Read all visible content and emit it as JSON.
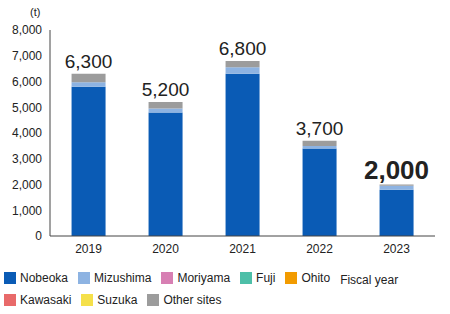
{
  "chart_data": {
    "type": "bar",
    "stacked": true,
    "y_label": "(t)",
    "x_label": "Fiscal year",
    "categories": [
      "2019",
      "2020",
      "2021",
      "2022",
      "2023"
    ],
    "series": [
      {
        "name": "Nobeoka",
        "color": "#0a5bb5",
        "values": [
          5800,
          4800,
          6300,
          3400,
          1800
        ]
      },
      {
        "name": "Mizushima",
        "color": "#8db3e2",
        "values": [
          170,
          150,
          250,
          100,
          150
        ]
      },
      {
        "name": "Moriyama",
        "color": "#d77fb3",
        "values": [
          0,
          0,
          0,
          0,
          0
        ]
      },
      {
        "name": "Fuji",
        "color": "#4dbfa8",
        "values": [
          0,
          0,
          0,
          0,
          0
        ]
      },
      {
        "name": "Ohito",
        "color": "#f29b00",
        "values": [
          0,
          0,
          0,
          0,
          0
        ]
      },
      {
        "name": "Kawasaki",
        "color": "#e86a6a",
        "values": [
          0,
          0,
          0,
          0,
          0
        ]
      },
      {
        "name": "Suzuka",
        "color": "#f5e04a",
        "values": [
          0,
          0,
          0,
          0,
          0
        ]
      },
      {
        "name": "Other sites",
        "color": "#9c9c9c",
        "values": [
          330,
          250,
          250,
          200,
          50
        ]
      }
    ],
    "totals": [
      {
        "value": 6300,
        "label": "6,300"
      },
      {
        "value": 5200,
        "label": "5,200"
      },
      {
        "value": 6800,
        "label": "6,800"
      },
      {
        "value": 3700,
        "label": "3,700"
      },
      {
        "value": 2000,
        "label": "2,000"
      }
    ],
    "ylim": [
      0,
      8000
    ],
    "yticks": [
      0,
      {
        "value": 1000,
        "label": "1,000"
      },
      {
        "value": 2000,
        "label": "2,000"
      },
      {
        "value": 3000,
        "label": "3,000"
      },
      {
        "value": 4000,
        "label": "4,000"
      },
      {
        "value": 5000,
        "label": "5,000"
      },
      {
        "value": 6000,
        "label": "6,000"
      },
      {
        "value": 7000,
        "label": "7,000"
      },
      {
        "value": 8000,
        "label": "8,000"
      }
    ],
    "grid": false
  }
}
